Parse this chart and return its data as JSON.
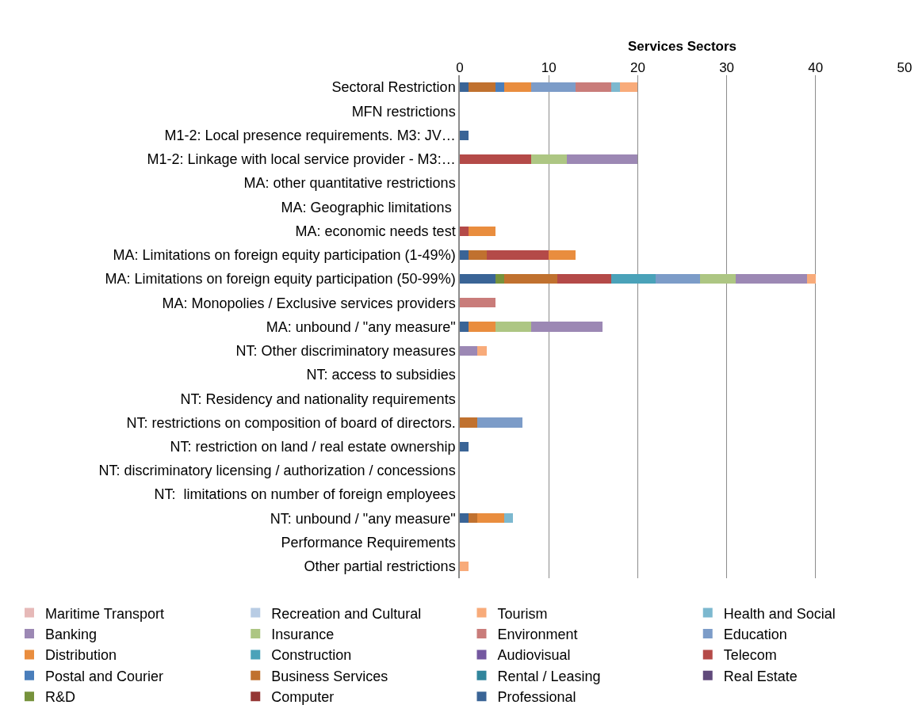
{
  "chart_data": {
    "type": "bar",
    "orientation": "horizontal",
    "stacked": true,
    "xlabel": "Services Sectors",
    "categories": [
      "Sectoral Restriction",
      "MFN restrictions",
      "M1-2: Local presence requirements. M3: JV…",
      "M1-2: Linkage with local service provider - M3:…",
      "MA: other quantitative restrictions",
      "MA: Geographic limitations ",
      "MA: economic needs test",
      "MA: Limitations on foreign equity participation (1-49%)",
      "MA: Limitations on foreign equity participation (50-99%)",
      "MA: Monopolies / Exclusive services providers",
      "MA: unbound / \"any measure\"",
      "NT: Other discriminatory measures",
      "NT: access to subsidies",
      "NT: Residency and nationality requirements",
      "NT: restrictions on composition of board of directors.",
      "NT: restriction on land / real estate ownership",
      "NT: discriminatory licensing / authorization / concessions",
      "NT:  limitations on number of foreign employees",
      "NT: unbound / \"any measure\"",
      "Performance Requirements",
      "Other partial restrictions"
    ],
    "series": [
      {
        "name": "Professional",
        "color": "#3a6496",
        "values": [
          1,
          0,
          1,
          0,
          0,
          0,
          0,
          1,
          4,
          0,
          1,
          0,
          0,
          0,
          0,
          1,
          0,
          0,
          1,
          0,
          0
        ]
      },
      {
        "name": "Computer",
        "color": "#953735",
        "values": [
          0,
          0,
          0,
          0,
          0,
          0,
          0,
          0,
          0,
          0,
          0,
          0,
          0,
          0,
          0,
          0,
          0,
          0,
          0,
          0,
          0
        ]
      },
      {
        "name": "R&D",
        "color": "#76923c",
        "values": [
          0,
          0,
          0,
          0,
          0,
          0,
          0,
          0,
          1,
          0,
          0,
          0,
          0,
          0,
          0,
          0,
          0,
          0,
          0,
          0,
          0
        ]
      },
      {
        "name": "Real Estate",
        "color": "#604a7b",
        "values": [
          0,
          0,
          0,
          0,
          0,
          0,
          0,
          0,
          0,
          0,
          0,
          0,
          0,
          0,
          0,
          0,
          0,
          0,
          0,
          0,
          0
        ]
      },
      {
        "name": "Rental / Leasing",
        "color": "#31859c",
        "values": [
          0,
          0,
          0,
          0,
          0,
          0,
          0,
          0,
          0,
          0,
          0,
          0,
          0,
          0,
          0,
          0,
          0,
          0,
          0,
          0,
          0
        ]
      },
      {
        "name": "Business Services",
        "color": "#c0712f",
        "values": [
          3,
          0,
          0,
          0,
          0,
          0,
          0,
          2,
          6,
          0,
          0,
          0,
          0,
          0,
          2,
          0,
          0,
          0,
          1,
          0,
          0
        ]
      },
      {
        "name": "Postal and Courier",
        "color": "#4a7ebb",
        "values": [
          1,
          0,
          0,
          0,
          0,
          0,
          0,
          0,
          0,
          0,
          0,
          0,
          0,
          0,
          0,
          0,
          0,
          0,
          0,
          0,
          0
        ]
      },
      {
        "name": "Telecom",
        "color": "#b44a48",
        "values": [
          0,
          0,
          0,
          8,
          0,
          0,
          1,
          7,
          6,
          0,
          0,
          0,
          0,
          0,
          0,
          0,
          0,
          0,
          0,
          0,
          0
        ]
      },
      {
        "name": "Audiovisual",
        "color": "#7458a0",
        "values": [
          0,
          0,
          0,
          0,
          0,
          0,
          0,
          0,
          0,
          0,
          0,
          0,
          0,
          0,
          0,
          0,
          0,
          0,
          0,
          0,
          0
        ]
      },
      {
        "name": "Construction",
        "color": "#4aa2b9",
        "values": [
          0,
          0,
          0,
          0,
          0,
          0,
          0,
          0,
          5,
          0,
          0,
          0,
          0,
          0,
          0,
          0,
          0,
          0,
          0,
          0,
          0
        ]
      },
      {
        "name": "Distribution",
        "color": "#e98d3e",
        "values": [
          3,
          0,
          0,
          0,
          0,
          0,
          3,
          3,
          0,
          0,
          3,
          0,
          0,
          0,
          0,
          0,
          0,
          0,
          3,
          0,
          0
        ]
      },
      {
        "name": "Education",
        "color": "#7c9cc8",
        "values": [
          5,
          0,
          0,
          0,
          0,
          0,
          0,
          0,
          5,
          0,
          0,
          0,
          0,
          0,
          5,
          0,
          0,
          0,
          0,
          0,
          0
        ]
      },
      {
        "name": "Environment",
        "color": "#c97c7a",
        "values": [
          4,
          0,
          0,
          0,
          0,
          0,
          0,
          0,
          0,
          4,
          0,
          0,
          0,
          0,
          0,
          0,
          0,
          0,
          0,
          0,
          0
        ]
      },
      {
        "name": "Insurance",
        "color": "#adc683",
        "values": [
          0,
          0,
          0,
          4,
          0,
          0,
          0,
          0,
          4,
          0,
          4,
          0,
          0,
          0,
          0,
          0,
          0,
          0,
          0,
          0,
          0
        ]
      },
      {
        "name": "Banking",
        "color": "#9c88b4",
        "values": [
          0,
          0,
          0,
          8,
          0,
          0,
          0,
          0,
          8,
          0,
          8,
          2,
          0,
          0,
          0,
          0,
          0,
          0,
          0,
          0,
          0
        ]
      },
      {
        "name": "Health and Social",
        "color": "#7cb8cf",
        "values": [
          1,
          0,
          0,
          0,
          0,
          0,
          0,
          0,
          0,
          0,
          0,
          0,
          0,
          0,
          0,
          0,
          0,
          0,
          1,
          0,
          0
        ]
      },
      {
        "name": "Tourism",
        "color": "#f8ab7a",
        "values": [
          2,
          0,
          0,
          0,
          0,
          0,
          0,
          0,
          1,
          0,
          0,
          1,
          0,
          0,
          0,
          0,
          0,
          0,
          0,
          0,
          1
        ]
      },
      {
        "name": "Recreation and Cultural",
        "color": "#b8cce4",
        "values": [
          0,
          0,
          0,
          0,
          0,
          0,
          0,
          0,
          0,
          0,
          0,
          0,
          0,
          0,
          0,
          0,
          0,
          0,
          0,
          0,
          0
        ]
      },
      {
        "name": "Maritime Transport",
        "color": "#e6b9b8",
        "values": [
          0,
          0,
          0,
          0,
          0,
          0,
          0,
          0,
          0,
          0,
          0,
          0,
          0,
          0,
          0,
          0,
          0,
          0,
          0,
          0,
          0
        ]
      }
    ],
    "xlim": [
      0,
      50
    ],
    "xticks": [
      0,
      10,
      20,
      30,
      40,
      50
    ],
    "grid": "x",
    "legend": "bottom"
  }
}
